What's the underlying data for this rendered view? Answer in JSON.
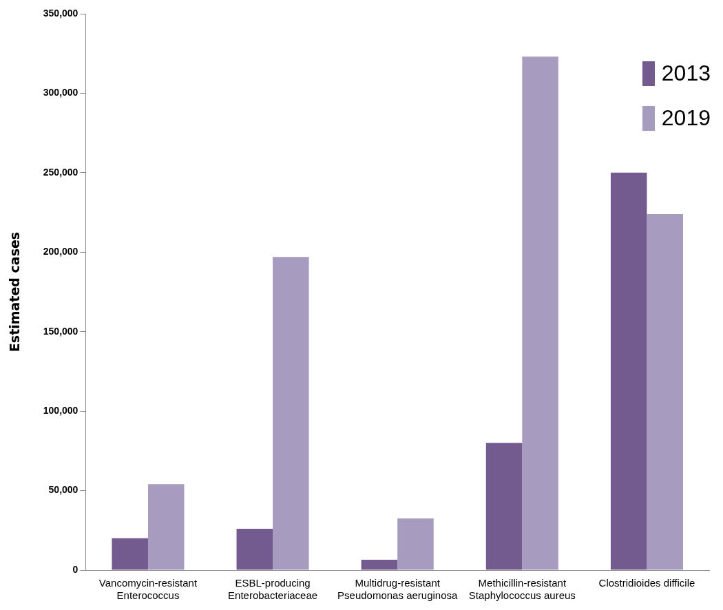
{
  "chart_data": {
    "type": "bar",
    "ylabel": "Estimated cases",
    "categories": [
      "Vancomycin-resistant\nEnterococcus",
      "ESBL-producing\nEnterobacteriaceae",
      "Multidrug-resistant\nPseudomonas aeruginosa",
      "Methicillin-resistant\nStaphylococcus aureus",
      "Clostridioides difficile"
    ],
    "series": [
      {
        "name": "2013",
        "color": "#735a8f",
        "values": [
          20000,
          26000,
          6500,
          80000,
          250000
        ]
      },
      {
        "name": "2019",
        "color": "#a89bc0",
        "values": [
          54000,
          197000,
          32500,
          323000,
          224000
        ]
      }
    ],
    "ylim": [
      0,
      350000
    ],
    "yticks": [
      {
        "value": 0,
        "label": "0"
      },
      {
        "value": 50000,
        "label": "50,000"
      },
      {
        "value": 100000,
        "label": "100,000"
      },
      {
        "value": 150000,
        "label": "150,000"
      },
      {
        "value": 200000,
        "label": "200,000"
      },
      {
        "value": 250000,
        "label": "250,000"
      },
      {
        "value": 300000,
        "label": "300,000"
      },
      {
        "value": 350000,
        "label": "350,000"
      }
    ],
    "grid": false,
    "legend": "top right"
  }
}
